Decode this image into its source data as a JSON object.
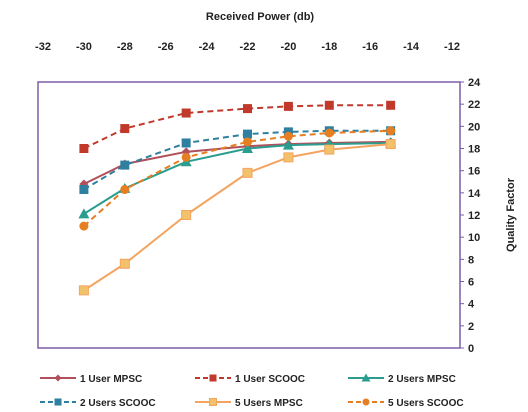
{
  "chart_data": {
    "type": "line",
    "title": "",
    "xlabel": "Received Power (db)",
    "ylabel": "Quality Factor",
    "x_axis_position": "top",
    "y_axis_position": "right",
    "xlim": [
      -32,
      -12
    ],
    "ylim": [
      0,
      24
    ],
    "xticks": [
      -32,
      -30,
      -28,
      -26,
      -24,
      -22,
      -20,
      -18,
      -16,
      -14,
      -12
    ],
    "yticks": [
      0,
      2,
      4,
      6,
      8,
      10,
      12,
      14,
      16,
      18,
      20,
      22,
      24
    ],
    "grid": false,
    "legend_position": "bottom",
    "series": [
      {
        "name": "1 User MPSC",
        "color": "#B0505A",
        "dash": "solid",
        "marker": "diamond",
        "x": [
          -30,
          -28,
          -25,
          -22,
          -20,
          -18,
          -15
        ],
        "y": [
          14.8,
          16.6,
          17.7,
          18.2,
          18.4,
          18.5,
          18.6
        ]
      },
      {
        "name": "1 User SCOOC",
        "color": "#C0392B",
        "dash": "dashed",
        "marker": "square",
        "x": [
          -30,
          -28,
          -25,
          -22,
          -20,
          -18,
          -15
        ],
        "y": [
          18.0,
          19.8,
          21.2,
          21.6,
          21.8,
          21.9,
          21.9
        ]
      },
      {
        "name": "2 Users MPSC",
        "color": "#2A9D8F",
        "dash": "solid",
        "marker": "triangle",
        "x": [
          -30,
          -28,
          -25,
          -22,
          -20,
          -18,
          -15
        ],
        "y": [
          12.1,
          14.4,
          16.8,
          18.0,
          18.3,
          18.4,
          18.5
        ]
      },
      {
        "name": "2 Users SCOOC",
        "color": "#2E7FA0",
        "dash": "dashed",
        "marker": "square",
        "x": [
          -30,
          -28,
          -25,
          -22,
          -20,
          -18,
          -15
        ],
        "y": [
          14.3,
          16.5,
          18.5,
          19.3,
          19.5,
          19.6,
          19.6
        ]
      },
      {
        "name": "5 Users MPSC",
        "color": "#F4A460",
        "dash": "solid",
        "marker": "x",
        "x": [
          -30,
          -28,
          -25,
          -22,
          -20,
          -18,
          -15
        ],
        "y": [
          5.2,
          7.6,
          12.0,
          15.8,
          17.2,
          17.9,
          18.4
        ]
      },
      {
        "name": "5 Users SCOOC",
        "color": "#E67E22",
        "dash": "dashed",
        "marker": "circle",
        "x": [
          -30,
          -28,
          -25,
          -22,
          -20,
          -18,
          -15
        ],
        "y": [
          11.0,
          14.3,
          17.2,
          18.6,
          19.1,
          19.4,
          19.6
        ]
      }
    ]
  }
}
